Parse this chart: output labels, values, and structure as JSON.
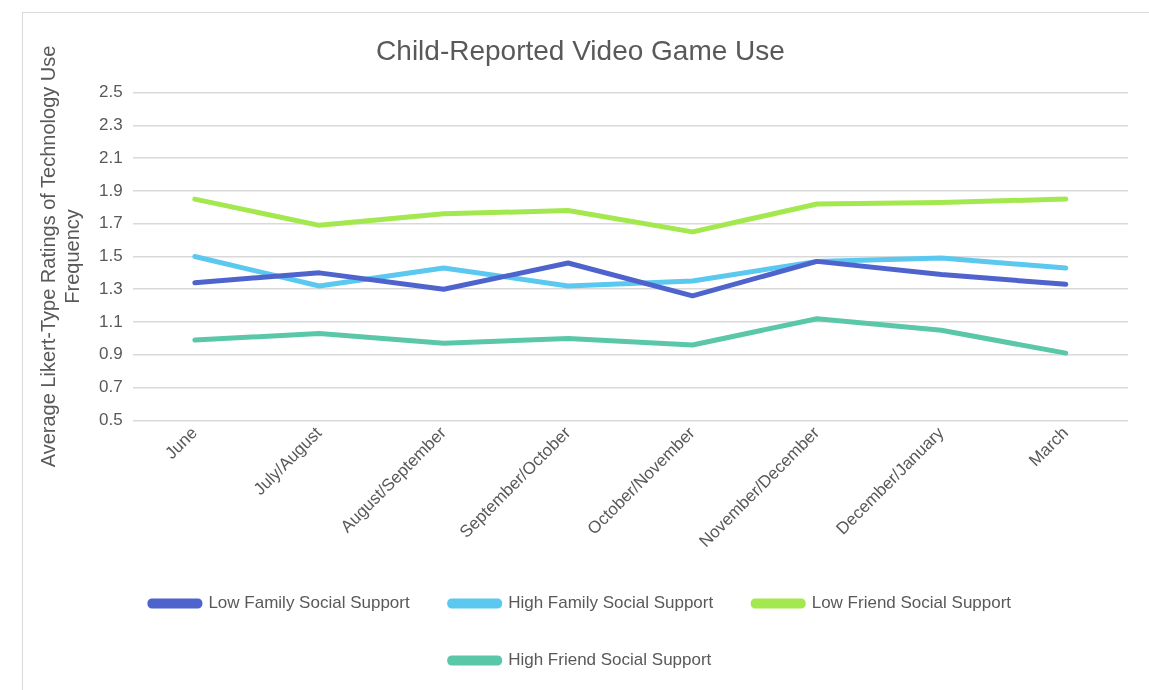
{
  "chart_data": {
    "type": "line",
    "title": "Child-Reported Video Game Use",
    "ylabel": "Average Likert-Type Ratings of Technology Use Frequency",
    "categories": [
      "June",
      "July/August",
      "August/September",
      "September/October",
      "October/November",
      "November/December",
      "December/January",
      "March"
    ],
    "series": [
      {
        "name": "Low Family Social Support",
        "color": "#4f63cc",
        "values": [
          1.34,
          1.4,
          1.3,
          1.46,
          1.26,
          1.47,
          1.39,
          1.33
        ]
      },
      {
        "name": "High Family Social Support",
        "color": "#5bc8f0",
        "values": [
          1.5,
          1.32,
          1.43,
          1.32,
          1.35,
          1.47,
          1.49,
          1.43
        ]
      },
      {
        "name": "Low Friend Social Support",
        "color": "#a3e84e",
        "values": [
          1.85,
          1.69,
          1.76,
          1.78,
          1.65,
          1.82,
          1.83,
          1.85
        ]
      },
      {
        "name": "High Friend Social Support",
        "color": "#5ac8a8",
        "values": [
          0.99,
          1.03,
          0.97,
          1.0,
          0.96,
          1.12,
          1.05,
          0.91
        ]
      }
    ],
    "ylim": [
      0.5,
      2.5
    ],
    "yticks": [
      0.5,
      0.7,
      0.9,
      1.1,
      1.3,
      1.5,
      1.7,
      1.9,
      2.1,
      2.3,
      2.5
    ],
    "grid": "y",
    "legend": "bottom",
    "marker": "none",
    "line_style": "solid"
  }
}
